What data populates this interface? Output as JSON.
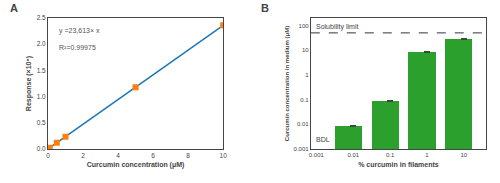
{
  "chart_data": [
    {
      "type": "scatter",
      "title": "A",
      "x_label": "Curcumin concentration (μM)",
      "y_label": "Response (×10⁵)",
      "series": [
        {
          "type": "line",
          "x": [
            0,
            10
          ],
          "values": [
            0,
            2.3613
          ]
        },
        {
          "type": "scatter",
          "marker": "square",
          "x": [
            0.1,
            0.5,
            1.0,
            5.0,
            10.0
          ],
          "values": [
            0.023613,
            0.118065,
            0.23613,
            1.18065,
            2.3613
          ]
        }
      ],
      "annotations": [
        "y =23,613× x",
        "R²=0.99975"
      ],
      "xlim": [
        0,
        10
      ],
      "ylim": [
        0,
        2.5
      ],
      "xticks": [
        0,
        2,
        4,
        6,
        8,
        10
      ],
      "yticks": [
        {
          "value": 0,
          "label": "0.0"
        },
        0.5,
        {
          "value": 1.0,
          "label": "1.0"
        },
        1.5,
        {
          "value": 2.0,
          "label": "2.0"
        },
        2.5
      ],
      "grid": false
    },
    {
      "type": "bar",
      "title": "B",
      "x_label": "% curcumin in filaments",
      "y_label": "Curcumin concentration in medium (μM)",
      "log": true,
      "x": [
        0.01,
        0.1,
        1.0,
        10.0
      ],
      "values": [
        0.0085,
        0.09,
        8.5,
        28.0
      ],
      "errors": [
        0.000425,
        0.0045,
        0.425,
        1.4
      ],
      "lines": [
        {
          "y": 50,
          "label": "Solubility limit",
          "line_style": "dashed"
        }
      ],
      "annotations": [
        "BDL"
      ],
      "xlim": [
        0.000707945784,
        39.8107170553
      ],
      "ylim": [
        0.001,
        200
      ],
      "xticks": [
        0.001,
        0.01,
        0.1,
        1,
        10
      ],
      "yticks": [
        0.001,
        0.01,
        0.1,
        1,
        10,
        100
      ],
      "grid": false
    }
  ]
}
